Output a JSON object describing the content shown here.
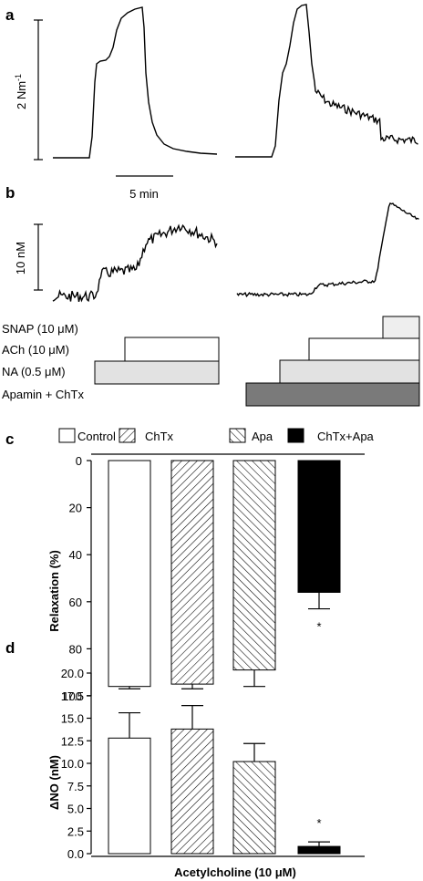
{
  "panel_a": {
    "letter": "a",
    "scale_label": "2 Nm",
    "scale_label_sup": "-1",
    "time_scale_label": "5 min"
  },
  "panel_b": {
    "letter": "b",
    "scale_label": "10 nM",
    "treatment_labels": [
      "SNAP (10 μM)",
      "ACh (10 μM)",
      "NA (0.5 μM)",
      "Apamin + ChTx"
    ],
    "bar_colors": {
      "SNAP": "#eeeeee",
      "ACh": "#ffffff",
      "NA": "#e2e2e2",
      "ApaminChTx": "#7a7a7a"
    }
  },
  "chart_data": [
    {
      "panel": "c",
      "type": "bar",
      "categories": [
        "Control",
        "ChTx",
        "Apa",
        "ChTx+Apa"
      ],
      "values": [
        96,
        95,
        89,
        56
      ],
      "errors": [
        1,
        2,
        7,
        7
      ],
      "ylabel": "Relaxation (%)",
      "xlabel": "",
      "ylim": [
        0,
        100
      ],
      "y_inverted": true,
      "yticks": [
        "0",
        "20",
        "40",
        "60",
        "80",
        "100"
      ],
      "legend": [
        "Control",
        "ChTx",
        "Apa",
        "ChTx+Apa"
      ],
      "legend_position": "top",
      "significance": [
        "",
        "",
        "",
        "*"
      ],
      "fills": [
        "white",
        "hatch-backslash",
        "hatch-slash",
        "black"
      ]
    },
    {
      "panel": "d",
      "type": "bar",
      "categories": [
        "Control",
        "ChTx",
        "Apa",
        "ChTx+Apa"
      ],
      "values": [
        12.8,
        13.8,
        10.2,
        0.8
      ],
      "errors": [
        2.8,
        2.6,
        2.0,
        0.5
      ],
      "ylabel": "ΔNO (nM)",
      "xlabel": "Acetylcholine (10 μM)",
      "ylim": [
        0,
        20
      ],
      "yticks": [
        "0.0",
        "2.5",
        "5.0",
        "7.5",
        "10.0",
        "12.5",
        "15.0",
        "17.5",
        "20.0"
      ],
      "significance": [
        "",
        "",
        "",
        "*"
      ],
      "fills": [
        "white",
        "hatch-backslash",
        "hatch-slash",
        "black"
      ]
    }
  ],
  "panel_c": {
    "letter": "c",
    "ylabel": "Relaxation (%)"
  },
  "panel_d": {
    "letter": "d",
    "ylabel": "ΔNO (nM)",
    "xlabel": "Acetylcholine (10 μM)"
  }
}
